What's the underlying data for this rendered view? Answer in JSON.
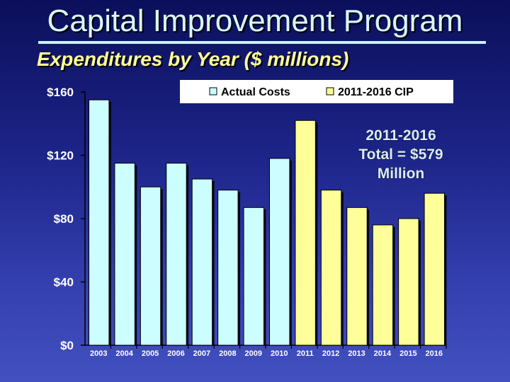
{
  "header": {
    "title": "Capital Improvement Program",
    "subtitle": "Expenditures by Year ($ millions)"
  },
  "chart_data": {
    "type": "bar",
    "title": "",
    "xlabel": "",
    "ylabel": "",
    "ylim": [
      0,
      160
    ],
    "yticks": [
      "$0",
      "$40",
      "$80",
      "$120",
      "$160"
    ],
    "ytick_values": [
      0,
      40,
      80,
      120,
      160
    ],
    "grid": false,
    "legend_position": "top-right",
    "categories": [
      "2003",
      "2004",
      "2005",
      "2006",
      "2007",
      "2008",
      "2009",
      "2010",
      "2011",
      "2012",
      "2013",
      "2014",
      "2015",
      "2016"
    ],
    "values": [
      155,
      115,
      100,
      115,
      105,
      98,
      87,
      118,
      142,
      98,
      87,
      76,
      80,
      96
    ],
    "series_index": [
      0,
      0,
      0,
      0,
      0,
      0,
      0,
      0,
      1,
      1,
      1,
      1,
      1,
      1
    ],
    "series": [
      {
        "name": "Actual Costs",
        "color": "#ccfeff"
      },
      {
        "name": "2011-2016 CIP",
        "color": "#ffff99"
      }
    ],
    "annotation": [
      "2011-2016",
      "Total = $579",
      "Million"
    ]
  }
}
